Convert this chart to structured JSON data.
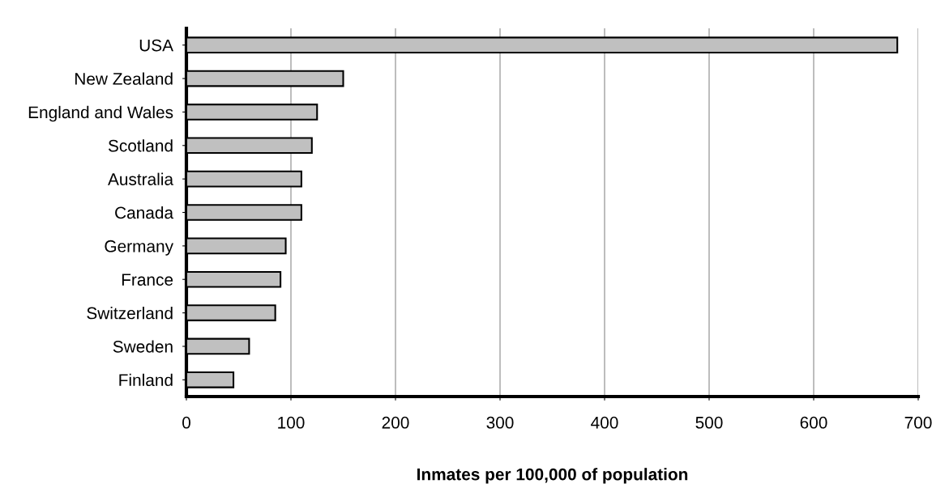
{
  "chart_data": {
    "type": "bar",
    "orientation": "horizontal",
    "categories": [
      "USA",
      "New Zealand",
      "England and Wales",
      "Scotland",
      "Australia",
      "Canada",
      "Germany",
      "France",
      "Switzerland",
      "Sweden",
      "Finland"
    ],
    "values": [
      680,
      150,
      125,
      120,
      110,
      110,
      95,
      90,
      85,
      60,
      45
    ],
    "color": "#c0c0c0",
    "xlabel": "Inmates per 100,000 of population",
    "xlim": [
      0,
      700
    ],
    "xticks": [
      0,
      100,
      200,
      300,
      400,
      500,
      600,
      700
    ],
    "grid": "x"
  }
}
